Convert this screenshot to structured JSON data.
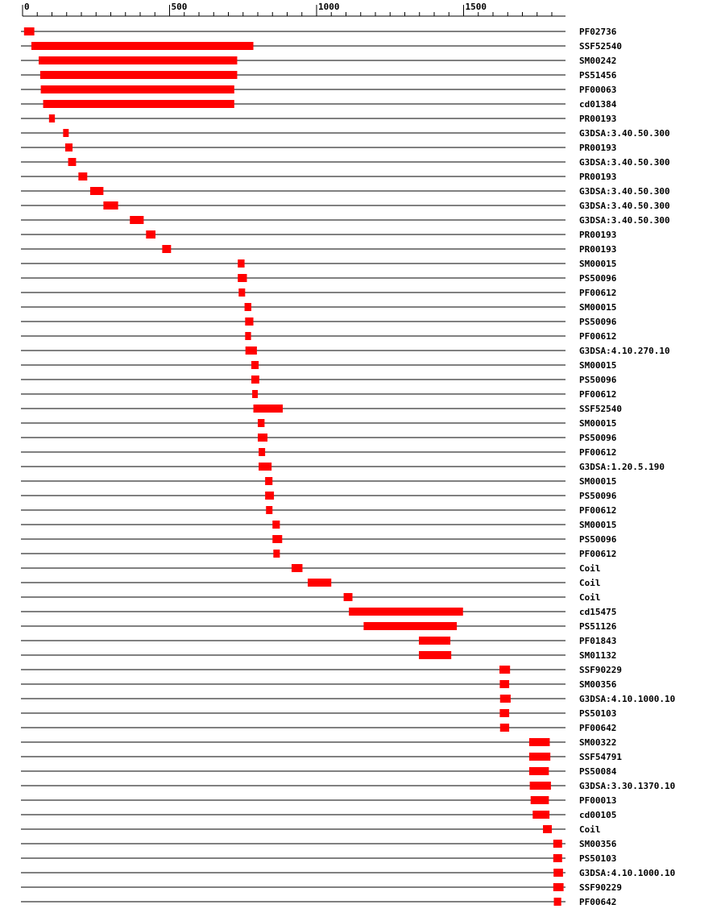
{
  "chart_data": {
    "type": "bar",
    "bar_color": "#ff0000",
    "axis": {
      "min": 0,
      "max": 1840,
      "major_ticks": [
        0,
        500,
        1000,
        1500
      ],
      "major_labels": [
        "0",
        "500",
        "1000",
        "1500"
      ],
      "minor_step": 50
    },
    "tracks": [
      {
        "label": "PF02736",
        "start": 5,
        "end": 40
      },
      {
        "label": "SSF52540",
        "start": 30,
        "end": 785
      },
      {
        "label": "SM00242",
        "start": 55,
        "end": 730
      },
      {
        "label": "PS51456",
        "start": 60,
        "end": 730
      },
      {
        "label": "PF00063",
        "start": 62,
        "end": 720
      },
      {
        "label": "cd01384",
        "start": 70,
        "end": 720
      },
      {
        "label": "PR00193",
        "start": 90,
        "end": 110
      },
      {
        "label": "G3DSA:3.40.50.300",
        "start": 138,
        "end": 157
      },
      {
        "label": "PR00193",
        "start": 145,
        "end": 170
      },
      {
        "label": "G3DSA:3.40.50.300",
        "start": 155,
        "end": 182
      },
      {
        "label": "PR00193",
        "start": 190,
        "end": 220
      },
      {
        "label": "G3DSA:3.40.50.300",
        "start": 230,
        "end": 275
      },
      {
        "label": "G3DSA:3.40.50.300",
        "start": 275,
        "end": 325
      },
      {
        "label": "G3DSA:3.40.50.300",
        "start": 365,
        "end": 412
      },
      {
        "label": "PR00193",
        "start": 420,
        "end": 452
      },
      {
        "label": "PR00193",
        "start": 475,
        "end": 505
      },
      {
        "label": "SM00015",
        "start": 732,
        "end": 755
      },
      {
        "label": "PS50096",
        "start": 732,
        "end": 763
      },
      {
        "label": "PF00612",
        "start": 735,
        "end": 757
      },
      {
        "label": "SM00015",
        "start": 755,
        "end": 778
      },
      {
        "label": "PS50096",
        "start": 757,
        "end": 785
      },
      {
        "label": "PF00612",
        "start": 757,
        "end": 777
      },
      {
        "label": "G3DSA:4.10.270.10",
        "start": 758,
        "end": 797
      },
      {
        "label": "SM00015",
        "start": 778,
        "end": 803
      },
      {
        "label": "PS50096",
        "start": 778,
        "end": 805
      },
      {
        "label": "PF00612",
        "start": 781,
        "end": 800
      },
      {
        "label": "SSF52540",
        "start": 785,
        "end": 885
      },
      {
        "label": "SM00015",
        "start": 800,
        "end": 823
      },
      {
        "label": "PS50096",
        "start": 800,
        "end": 833
      },
      {
        "label": "PF00612",
        "start": 803,
        "end": 825
      },
      {
        "label": "G3DSA:1.20.5.190",
        "start": 803,
        "end": 847
      },
      {
        "label": "SM00015",
        "start": 825,
        "end": 850
      },
      {
        "label": "PS50096",
        "start": 825,
        "end": 855
      },
      {
        "label": "PF00612",
        "start": 828,
        "end": 850
      },
      {
        "label": "SM00015",
        "start": 850,
        "end": 875
      },
      {
        "label": "PS50096",
        "start": 850,
        "end": 883
      },
      {
        "label": "PF00612",
        "start": 853,
        "end": 875
      },
      {
        "label": "Coil",
        "start": 915,
        "end": 952
      },
      {
        "label": "Coil",
        "start": 970,
        "end": 1050
      },
      {
        "label": "Coil",
        "start": 1092,
        "end": 1122
      },
      {
        "label": "cd15475",
        "start": 1110,
        "end": 1498
      },
      {
        "label": "PS51126",
        "start": 1160,
        "end": 1477
      },
      {
        "label": "PF01843",
        "start": 1348,
        "end": 1455
      },
      {
        "label": "SM01132",
        "start": 1348,
        "end": 1458
      },
      {
        "label": "SSF90229",
        "start": 1622,
        "end": 1658
      },
      {
        "label": "SM00356",
        "start": 1623,
        "end": 1655
      },
      {
        "label": "G3DSA:4.10.1000.10",
        "start": 1624,
        "end": 1660
      },
      {
        "label": "PS50103",
        "start": 1623,
        "end": 1655
      },
      {
        "label": "PF00642",
        "start": 1624,
        "end": 1655
      },
      {
        "label": "SM00322",
        "start": 1723,
        "end": 1793
      },
      {
        "label": "SSF54791",
        "start": 1723,
        "end": 1795
      },
      {
        "label": "PS50084",
        "start": 1723,
        "end": 1790
      },
      {
        "label": "G3DSA:3.30.1370.10",
        "start": 1725,
        "end": 1797
      },
      {
        "label": "PF00013",
        "start": 1728,
        "end": 1790
      },
      {
        "label": "cd00105",
        "start": 1735,
        "end": 1792
      },
      {
        "label": "Coil",
        "start": 1770,
        "end": 1800
      },
      {
        "label": "SM00356",
        "start": 1805,
        "end": 1835
      },
      {
        "label": "PS50103",
        "start": 1805,
        "end": 1835
      },
      {
        "label": "G3DSA:4.10.1000.10",
        "start": 1806,
        "end": 1838
      },
      {
        "label": "SSF90229",
        "start": 1805,
        "end": 1840
      },
      {
        "label": "PF00642",
        "start": 1807,
        "end": 1832
      }
    ]
  }
}
